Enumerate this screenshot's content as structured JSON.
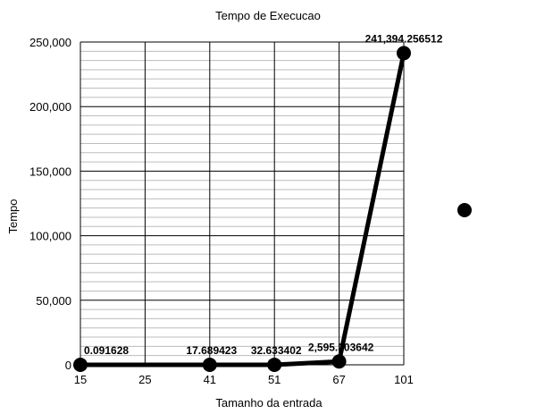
{
  "chart_data": {
    "type": "line",
    "title": "Tempo de Execucao",
    "xlabel": "Tamanho da entrada",
    "ylabel": "Tempo",
    "categories": [
      "15",
      "25",
      "41",
      "51",
      "67",
      "101"
    ],
    "ylim": [
      0,
      250000
    ],
    "yticks": [
      0,
      50000,
      100000,
      150000,
      200000,
      250000
    ],
    "ytick_labels": [
      "0",
      "50,000",
      "100,000",
      "150,000",
      "200,000",
      "250,000"
    ],
    "grid": true,
    "series": [
      {
        "points": [
          {
            "x": "15",
            "y": 0.091628,
            "label": "0.091628"
          },
          {
            "x": "41",
            "y": 17.689423,
            "label": "17.689423"
          },
          {
            "x": "51",
            "y": 32.633402,
            "label": "32.633402"
          },
          {
            "x": "67",
            "y": 2595.303642,
            "label": "2,595.303642"
          },
          {
            "x": "101",
            "y": 241394.256512,
            "label": "241,394.256512"
          }
        ],
        "color": "#000000"
      }
    ],
    "legend": {
      "position": "right",
      "marker_color": "#000000"
    }
  }
}
